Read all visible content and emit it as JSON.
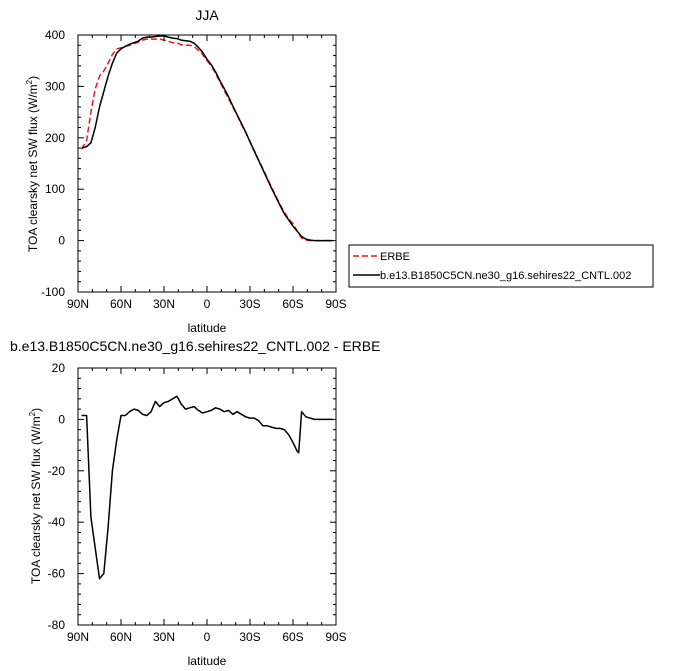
{
  "chart_data": [
    {
      "type": "line",
      "title": "JJA",
      "xlabel": "latitude",
      "ylabel": "TOA clearsky net SW flux (W/m",
      "ylabel_sup": "2",
      "ylabel_close": ")",
      "xlim": [
        90,
        -90
      ],
      "ylim": [
        -100,
        400
      ],
      "x_ticks": [
        90,
        60,
        30,
        0,
        -30,
        -60,
        -90
      ],
      "x_tick_labels": [
        "90N",
        "60N",
        "30N",
        "0",
        "30S",
        "60S",
        "90S"
      ],
      "y_ticks": [
        -100,
        0,
        100,
        200,
        300,
        400
      ],
      "y_tick_labels": [
        "-100",
        "0",
        "100",
        "200",
        "300",
        "400"
      ],
      "legend_position": "right",
      "series": [
        {
          "name": "ERBE",
          "color": "#e8191c",
          "dash": "dashed",
          "x": [
            87.5,
            84,
            81,
            78,
            75,
            72,
            69,
            66,
            63,
            60,
            57,
            54,
            51,
            48,
            45,
            42,
            39,
            36,
            33,
            30,
            27,
            24,
            21,
            18,
            15,
            12,
            9,
            6,
            3,
            0,
            -3,
            -6,
            -9,
            -12,
            -15,
            -18,
            -21,
            -24,
            -27,
            -30,
            -33,
            -36,
            -39,
            -42,
            -45,
            -48,
            -51,
            -54,
            -57,
            -60,
            -63,
            -66,
            -69,
            -72,
            -75,
            -78,
            -81,
            -84,
            -87.5
          ],
          "y": [
            178,
            195,
            250,
            295,
            320,
            330,
            345,
            362,
            373,
            375,
            378,
            380,
            383,
            386,
            390,
            392,
            392,
            392,
            392,
            390,
            388,
            385,
            385,
            381,
            380,
            380,
            378,
            370,
            362,
            350,
            340,
            325,
            309,
            292,
            276,
            260,
            244,
            226,
            210,
            193,
            175,
            157,
            140,
            122,
            104,
            87,
            70,
            55,
            42,
            33,
            18,
            5,
            1,
            0,
            0,
            0,
            0,
            0,
            0
          ]
        },
        {
          "name": "b.e13.B1850C5CN.ne30_g16.sehires22_CNTL.002",
          "color": "#000000",
          "dash": "solid",
          "x": [
            87.5,
            84,
            81,
            78,
            75,
            72,
            69,
            66,
            63,
            60,
            57,
            54,
            51,
            48,
            45,
            42,
            39,
            36,
            33,
            30,
            27,
            24,
            21,
            18,
            15,
            12,
            9,
            6,
            3,
            0,
            -3,
            -6,
            -9,
            -12,
            -15,
            -18,
            -21,
            -24,
            -27,
            -30,
            -33,
            -36,
            -39,
            -42,
            -45,
            -48,
            -51,
            -54,
            -57,
            -60,
            -63,
            -66,
            -69,
            -72,
            -75,
            -78,
            -81,
            -84,
            -87.5
          ],
          "y": [
            180,
            183,
            190,
            220,
            260,
            290,
            320,
            345,
            365,
            373,
            378,
            382,
            385,
            388,
            394,
            396,
            396,
            397,
            398,
            398,
            396,
            394,
            393,
            390,
            389,
            388,
            384,
            376,
            366,
            353,
            342,
            328,
            311,
            296,
            280,
            262,
            245,
            228,
            211,
            192,
            174,
            156,
            138,
            120,
            102,
            85,
            68,
            52,
            40,
            28,
            18,
            8,
            3,
            1,
            0,
            0,
            0,
            0,
            0
          ]
        }
      ]
    },
    {
      "type": "line",
      "title": "b.e13.B1850C5CN.ne30_g16.sehires22_CNTL.002 - ERBE",
      "xlabel": "latitude",
      "ylabel": "TOA clearsky net SW flux (W/m",
      "ylabel_sup": "2",
      "ylabel_close": ")",
      "xlim": [
        90,
        -90
      ],
      "ylim": [
        -80,
        20
      ],
      "x_ticks": [
        90,
        60,
        30,
        0,
        -30,
        -60,
        -90
      ],
      "x_tick_labels": [
        "90N",
        "60N",
        "30N",
        "0",
        "30S",
        "60S",
        "90S"
      ],
      "y_ticks": [
        -80,
        -60,
        -40,
        -20,
        0,
        20
      ],
      "y_tick_labels": [
        "-80",
        "-60",
        "-40",
        "-20",
        "0",
        "20"
      ],
      "series": [
        {
          "color": "#000000",
          "dash": "solid",
          "x": [
            87.5,
            84,
            81,
            78,
            75,
            72,
            69,
            66,
            63,
            60,
            57,
            54,
            51,
            48,
            45,
            42,
            39,
            36,
            33,
            30,
            27,
            24,
            21,
            18,
            15,
            12,
            9,
            6,
            3,
            0,
            -3,
            -6,
            -9,
            -12,
            -15,
            -18,
            -21,
            -24,
            -27,
            -30,
            -33,
            -36,
            -39,
            -42,
            -45,
            -48,
            -51,
            -54,
            -57,
            -60,
            -63,
            -64,
            -66,
            -69,
            -72,
            -75,
            -78,
            -81,
            -84,
            -87.5
          ],
          "y": [
            1.5,
            1.5,
            -38,
            -50,
            -62,
            -60,
            -42,
            -20,
            -8,
            1.5,
            1.5,
            3,
            4,
            3.5,
            2,
            1.5,
            3,
            7,
            5,
            6.5,
            7,
            8,
            9,
            6,
            4,
            4.5,
            5,
            3.5,
            2.5,
            3,
            3.5,
            4.5,
            4,
            3,
            3.5,
            2,
            3,
            2,
            1,
            0.5,
            0.5,
            -0.5,
            -2.5,
            -2.5,
            -3,
            -3.5,
            -3.5,
            -4,
            -6,
            -9,
            -12.5,
            -13,
            3,
            1,
            0.5,
            0,
            0,
            0,
            0,
            0
          ]
        }
      ]
    }
  ]
}
